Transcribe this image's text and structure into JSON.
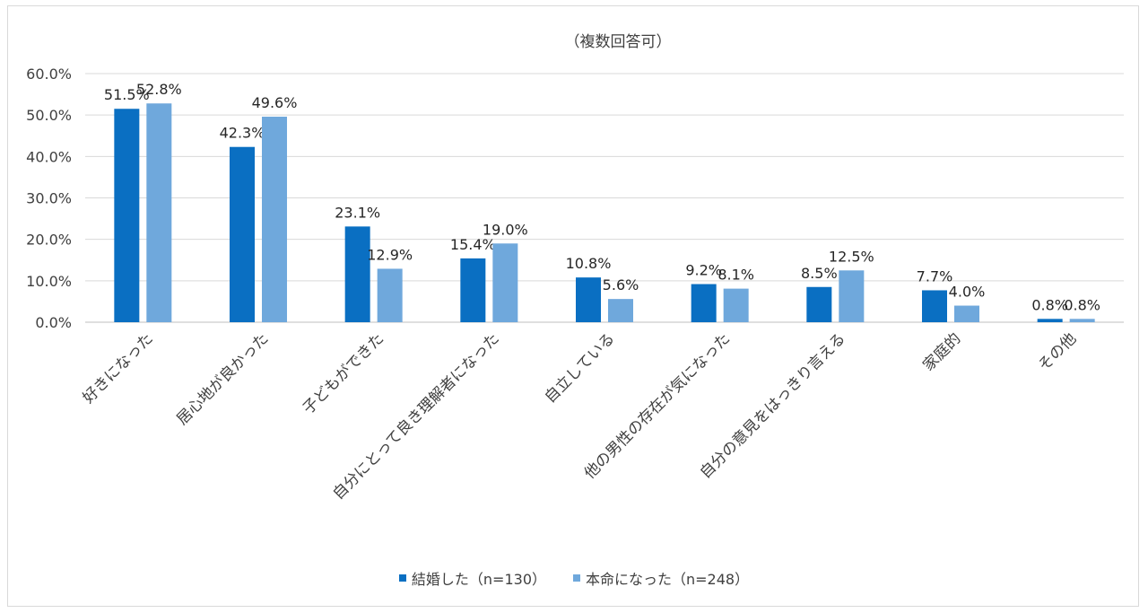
{
  "chart_data": {
    "type": "bar",
    "subtitle": "（複数回答可）",
    "categories": [
      "好きになった",
      "居心地が良かった",
      "子どもができた",
      "自分にとって良き理解者になった",
      "自立している",
      "他の男性の存在が気になった",
      "自分の意見をはっきり言える",
      "家庭的",
      "その他"
    ],
    "series": [
      {
        "name": "結婚した（n=130）",
        "color": "#0a6fc2",
        "values": [
          51.5,
          42.3,
          23.1,
          15.4,
          10.8,
          9.2,
          8.5,
          7.7,
          0.8
        ],
        "labels": [
          "51.5%",
          "42.3%",
          "23.1%",
          "15.4%",
          "10.8%",
          "9.2%",
          "8.5%",
          "7.7%",
          "0.8%"
        ]
      },
      {
        "name": "本命になった（n=248）",
        "color": "#6fa8dc",
        "values": [
          52.8,
          49.6,
          12.9,
          19.0,
          5.6,
          8.1,
          12.5,
          4.0,
          0.8
        ],
        "labels": [
          "52.8%",
          "49.6%",
          "12.9%",
          "19.0%",
          "5.6%",
          "8.1%",
          "12.5%",
          "4.0%",
          "0.8%"
        ]
      }
    ],
    "yticks": [
      "0.0%",
      "10.0%",
      "20.0%",
      "30.0%",
      "40.0%",
      "50.0%",
      "60.0%"
    ],
    "ylim": [
      0,
      60
    ],
    "grid": true,
    "legend_position": "bottom"
  }
}
